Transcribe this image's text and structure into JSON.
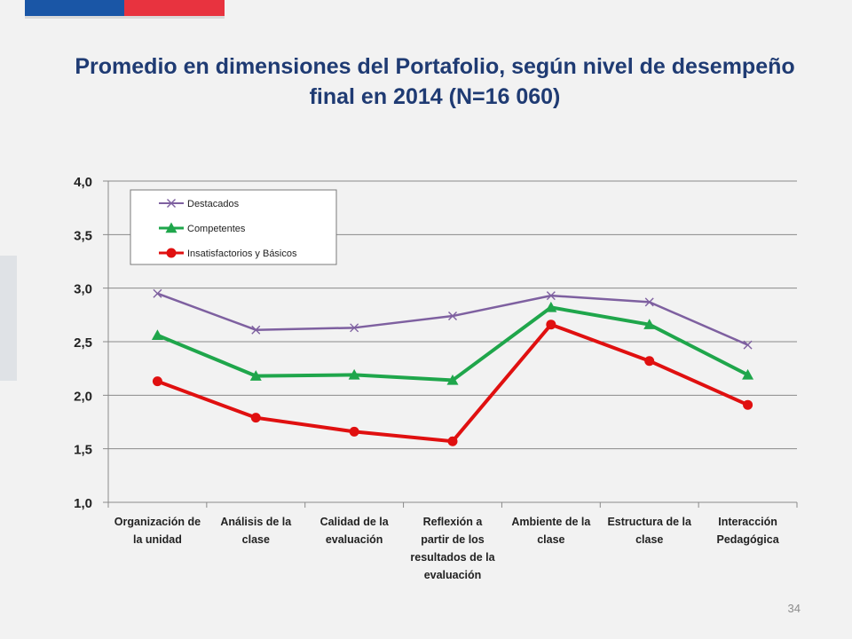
{
  "slide": {
    "title": "Promedio en dimensiones del Portafolio, según nivel de desempeño final en 2014 (N=16 060)",
    "page_number": "34"
  },
  "colors": {
    "title": "#1f3b73",
    "destacados": "#7e60a0",
    "competentes": "#1fa64b",
    "insatisfactorios": "#e01010"
  },
  "chart_data": {
    "type": "line",
    "title": "Promedio en dimensiones del Portafolio, según nivel de desempeño final en 2014 (N=16 060)",
    "categories": [
      [
        "Organización de",
        "la unidad"
      ],
      [
        "Análisis de la",
        "clase"
      ],
      [
        "Calidad de la",
        "evaluación"
      ],
      [
        "Reflexión a",
        "partir de los",
        "resultados de la",
        "evaluación"
      ],
      [
        "Ambiente de la",
        "clase"
      ],
      [
        "Estructura de la",
        "clase"
      ],
      [
        "Interacción",
        "Pedagógica"
      ]
    ],
    "series": [
      {
        "name": "Destacados",
        "marker": "x",
        "color": "#7e60a0",
        "values": [
          2.95,
          2.61,
          2.63,
          2.74,
          2.93,
          2.87,
          2.47
        ]
      },
      {
        "name": "Competentes",
        "marker": "triangle",
        "color": "#1fa64b",
        "values": [
          2.56,
          2.18,
          2.19,
          2.14,
          2.82,
          2.66,
          2.19
        ]
      },
      {
        "name": "Insatisfactorios y Básicos",
        "marker": "circle",
        "color": "#e01010",
        "values": [
          2.13,
          1.79,
          1.66,
          1.57,
          2.66,
          2.32,
          1.91
        ]
      }
    ],
    "yticks": [
      "1,0",
      "1,5",
      "2,0",
      "2,5",
      "3,0",
      "3,5",
      "4,0"
    ],
    "ylim": [
      1.0,
      4.0
    ],
    "grid": true,
    "legend_position": "top-left"
  }
}
